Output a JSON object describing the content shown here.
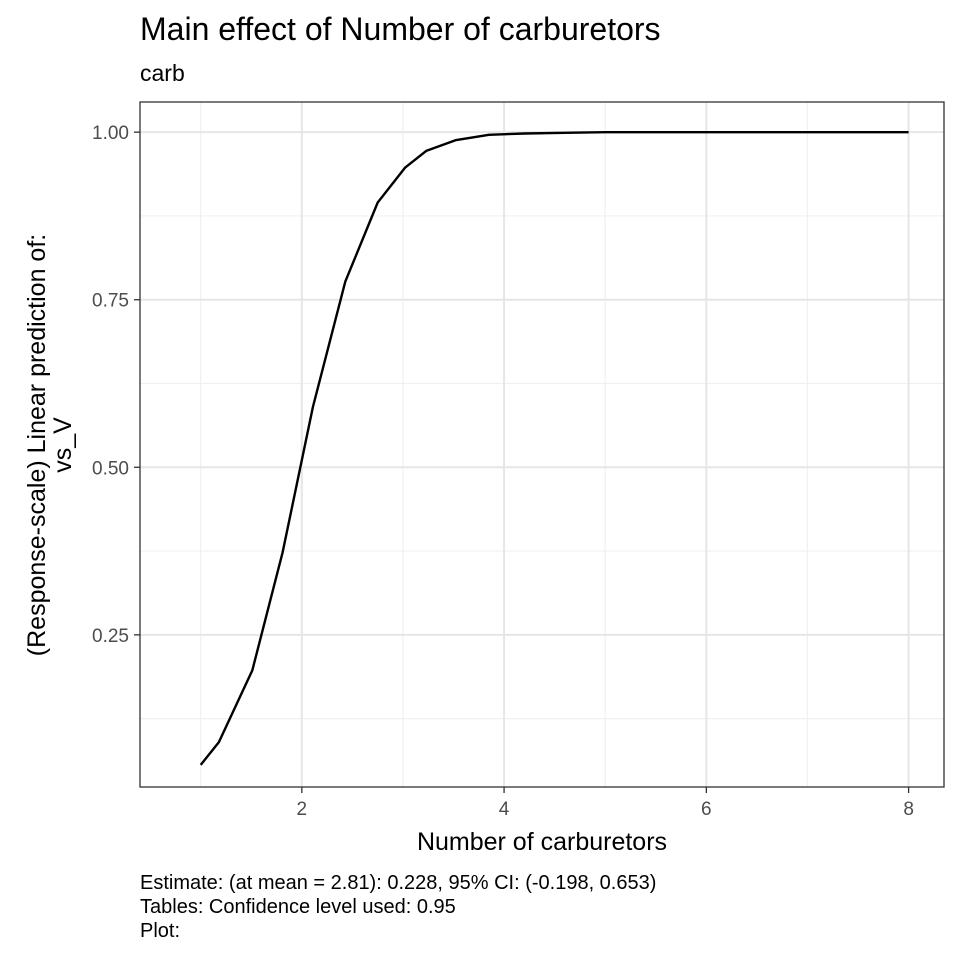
{
  "chart_data": {
    "type": "line",
    "title": "Main effect of Number of carburetors",
    "subtitle": "carb",
    "xlabel": "Number of carburetors",
    "ylabel_lines": [
      "(Response-scale) Linear prediction of:",
      "vs_V"
    ],
    "xlim": [
      0.4,
      8.35
    ],
    "ylim": [
      0.023,
      1.045
    ],
    "x_ticks": [
      2,
      4,
      6,
      8
    ],
    "x_tick_labels": [
      "2",
      "4",
      "6",
      "8"
    ],
    "y_ticks": [
      0.25,
      0.5,
      0.75,
      1.0
    ],
    "y_tick_labels": [
      "0.25",
      "0.50",
      "0.75",
      "1.00"
    ],
    "x_minor": [
      1,
      3,
      5,
      7
    ],
    "y_minor": [
      0.125,
      0.375,
      0.625,
      0.875
    ],
    "grid": true,
    "line_color": "#000000",
    "series": [
      {
        "x": [
          1.0,
          1.18,
          1.51,
          1.81,
          2.11,
          2.43,
          2.75,
          3.02,
          3.23,
          3.52,
          3.85,
          4.2,
          4.6,
          5.0,
          5.5,
          6.0,
          6.5,
          7.0,
          7.5,
          8.0
        ],
        "y": [
          0.056,
          0.09,
          0.197,
          0.373,
          0.59,
          0.777,
          0.895,
          0.947,
          0.972,
          0.988,
          0.996,
          0.998,
          0.999,
          1.0,
          1.0,
          1.0,
          1.0,
          1.0,
          1.0,
          1.0
        ]
      }
    ]
  },
  "caption": [
    "Estimate: (at mean = 2.81): 0.228, 95% CI: (-0.198, 0.653)",
    "Tables: Confidence level used: 0.95",
    "Plot:"
  ]
}
